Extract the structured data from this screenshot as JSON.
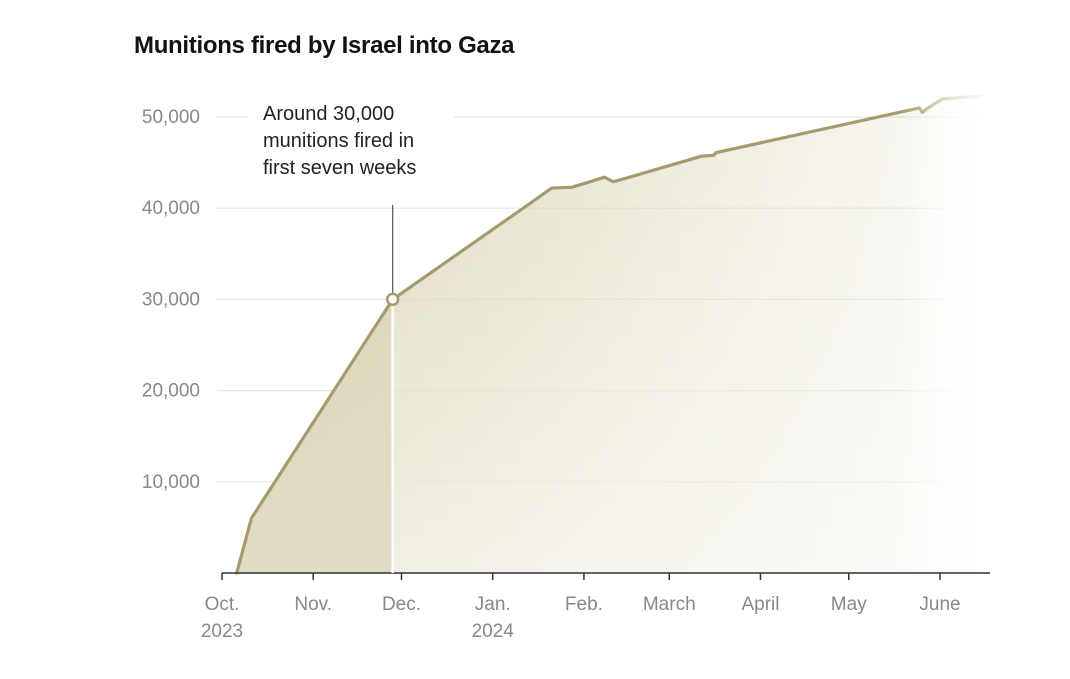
{
  "chart_data": {
    "type": "area",
    "title": "Munitions fired by Israel into Gaza",
    "xlabel": "",
    "ylabel": "",
    "xlim": [
      "2023-10-01",
      "2024-06-18"
    ],
    "ylim": [
      0,
      50000
    ],
    "grid": true,
    "x_ticks": [
      {
        "date": "2023-10-01",
        "label": "Oct.",
        "year": "2023"
      },
      {
        "date": "2023-11-01",
        "label": "Nov.",
        "year": ""
      },
      {
        "date": "2023-12-01",
        "label": "Dec.",
        "year": ""
      },
      {
        "date": "2024-01-01",
        "label": "Jan.",
        "year": "2024"
      },
      {
        "date": "2024-02-01",
        "label": "Feb.",
        "year": ""
      },
      {
        "date": "2024-03-01",
        "label": "March",
        "year": ""
      },
      {
        "date": "2024-04-01",
        "label": "April",
        "year": ""
      },
      {
        "date": "2024-05-01",
        "label": "May",
        "year": ""
      },
      {
        "date": "2024-06-01",
        "label": "June",
        "year": ""
      }
    ],
    "y_ticks": [
      {
        "value": 10000,
        "label": "10,000"
      },
      {
        "value": 20000,
        "label": "20,000"
      },
      {
        "value": 30000,
        "label": "30,000"
      },
      {
        "value": 40000,
        "label": "40,000"
      },
      {
        "value": 50000,
        "label": "50,000"
      }
    ],
    "series": [
      {
        "x": [
          "2023-10-06",
          "2023-10-11",
          "2023-11-28",
          "2024-01-14",
          "2024-01-21",
          "2024-01-28",
          "2024-02-02",
          "2024-02-08",
          "2024-02-11",
          "2024-03-12",
          "2024-03-16",
          "2024-03-17",
          "2024-05-25",
          "2024-05-26",
          "2024-05-28",
          "2024-06-02",
          "2024-06-15"
        ],
        "y": [
          0,
          6000,
          30000,
          40600,
          42200,
          42300,
          42800,
          43400,
          42900,
          45700,
          45800,
          46100,
          51000,
          50500,
          51000,
          52000,
          52300
        ],
        "color": "#a69b6e"
      }
    ],
    "highlight": {
      "date": "2023-11-28",
      "value": 30000,
      "annotation": [
        "Around 30,000",
        "munitions fired in",
        "first seven weeks"
      ]
    }
  }
}
